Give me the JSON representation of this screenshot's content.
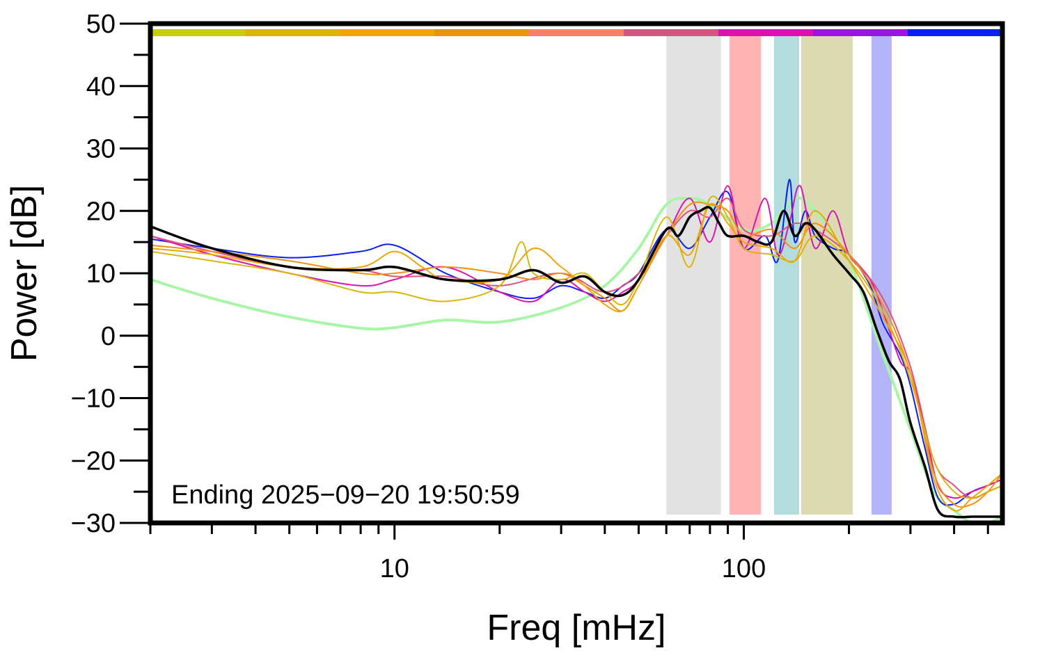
{
  "chart_data": {
    "type": "line",
    "xlabel": "Freq [mHz]",
    "ylabel": "Power [dB]",
    "xscale": "log",
    "xlim": [
      2,
      550
    ],
    "ylim": [
      -30,
      50
    ],
    "x_ticks": [
      10,
      100
    ],
    "y_ticks": [
      50,
      40,
      30,
      20,
      10,
      0,
      -10,
      -20,
      -30
    ],
    "y_tick_labels": [
      "50",
      "40",
      "30",
      "20",
      "10",
      "0",
      "−10",
      "−20",
      "−30"
    ],
    "x_tick_labels": [
      "10",
      "100"
    ],
    "annotation": "Ending 2025−09−20 19:50:59",
    "grid": false,
    "legend": "none",
    "color_bar": [
      "#c8cc10",
      "#d9b50a",
      "#eea50a",
      "#f39010",
      "#fb7f6a",
      "#de5080",
      "#dd10b0",
      "#a510e0",
      "#0a1ff0"
    ],
    "bands": [
      {
        "x0": 60,
        "x1": 86,
        "color": "#e2e2e2"
      },
      {
        "x0": 91,
        "x1": 112,
        "color": "#ffb3b3"
      },
      {
        "x0": 122,
        "x1": 144,
        "color": "#b3dcdd"
      },
      {
        "x0": 146,
        "x1": 205,
        "color": "#dbdab3"
      },
      {
        "x0": 232,
        "x1": 265,
        "color": "#b3b3f8"
      }
    ],
    "series": [
      {
        "color": "#a8f5a8",
        "width": 4,
        "x": [
          2,
          3,
          5,
          8,
          10,
          14,
          20,
          30,
          40,
          50,
          60,
          70,
          80,
          100,
          120,
          140,
          160,
          200,
          250,
          300,
          350,
          400,
          450,
          500,
          550
        ],
        "y": [
          9,
          6,
          3,
          1.2,
          1.3,
          2.5,
          2.2,
          4.5,
          8,
          14,
          21,
          22,
          21,
          17,
          18,
          22,
          20,
          12,
          -3,
          -15,
          -25,
          -28,
          -30,
          -30,
          -29
        ]
      },
      {
        "color": "#0a1ff0",
        "width": 2,
        "x": [
          2,
          3,
          5,
          8,
          10,
          14,
          20,
          25,
          30,
          35,
          40,
          45,
          50,
          60,
          70,
          80,
          90,
          100,
          115,
          125,
          135,
          140,
          150,
          160,
          180,
          200,
          230,
          250,
          280,
          300,
          330,
          360,
          400,
          450,
          500,
          550
        ],
        "y": [
          15.5,
          14,
          12.5,
          13.5,
          14.5,
          10,
          7,
          6,
          8,
          7,
          6,
          8,
          10,
          17,
          14,
          19,
          23,
          14,
          16,
          12,
          25,
          15,
          20,
          16,
          14,
          13,
          8,
          2,
          -3,
          -8,
          -18,
          -26,
          -27,
          -25,
          -24,
          -23
        ]
      },
      {
        "color": "#dd10b0",
        "width": 2,
        "x": [
          2,
          3,
          5,
          8,
          10,
          14,
          20,
          25,
          30,
          35,
          40,
          45,
          50,
          60,
          70,
          80,
          90,
          100,
          115,
          125,
          135,
          145,
          160,
          180,
          200,
          230,
          250,
          280,
          300,
          330,
          360,
          400,
          450,
          500,
          550
        ],
        "y": [
          16,
          13,
          10,
          8,
          9,
          11,
          7,
          5.5,
          9,
          7,
          5.5,
          7,
          9,
          16,
          22,
          15,
          24,
          14,
          22,
          13,
          18,
          24,
          14,
          20,
          13,
          9,
          4,
          -4,
          -6,
          -15,
          -24,
          -26,
          -25,
          -24,
          -23
        ]
      },
      {
        "color": "#de5080",
        "width": 2,
        "x": [
          2,
          3,
          5,
          8,
          10,
          14,
          20,
          30,
          40,
          50,
          60,
          70,
          80,
          90,
          100,
          120,
          140,
          160,
          200,
          250,
          300,
          350,
          400,
          450,
          500,
          550
        ],
        "y": [
          16,
          13.5,
          11,
          10.5,
          9.5,
          9.5,
          8,
          10,
          7,
          10,
          16,
          20,
          19,
          22,
          17,
          16,
          18,
          17,
          13,
          6,
          -5,
          -20,
          -24,
          -26,
          -25,
          -24
        ]
      },
      {
        "color": "#f39010",
        "width": 2,
        "x": [
          2,
          3,
          5,
          8,
          10,
          14,
          20,
          25,
          30,
          35,
          40,
          45,
          50,
          60,
          70,
          80,
          90,
          100,
          120,
          140,
          160,
          200,
          250,
          300,
          350,
          400,
          450,
          500,
          550
        ],
        "y": [
          14.5,
          13.5,
          12,
          10,
          10,
          11,
          10,
          9,
          10,
          8,
          6,
          4,
          8,
          16,
          21,
          21,
          20,
          16,
          17,
          14,
          18,
          13,
          5,
          -6,
          -22,
          -27,
          -27,
          -25,
          -22
        ]
      },
      {
        "color": "#d9b50a",
        "width": 2,
        "x": [
          2,
          3,
          5,
          8,
          10,
          14,
          20,
          23,
          25,
          30,
          35,
          40,
          45,
          50,
          60,
          70,
          80,
          90,
          100,
          120,
          140,
          160,
          200,
          250,
          300,
          350,
          400,
          450,
          500,
          550
        ],
        "y": [
          13.5,
          12,
          10,
          7,
          7,
          5.5,
          8,
          15,
          10,
          9,
          10,
          7,
          5,
          9,
          19,
          11,
          22,
          19,
          14,
          13,
          12,
          16,
          12,
          4,
          -7,
          -20,
          -25,
          -26,
          -25,
          -24
        ]
      },
      {
        "color": "#eea50a",
        "width": 2,
        "x": [
          2,
          3,
          5,
          8,
          10,
          12,
          14,
          20,
          25,
          30,
          35,
          40,
          45,
          50,
          60,
          70,
          80,
          90,
          100,
          120,
          140,
          160,
          200,
          250,
          300,
          350,
          400,
          450,
          500,
          550
        ],
        "y": [
          14,
          13,
          11,
          11,
          13.5,
          11,
          9,
          9,
          14,
          11,
          8,
          5,
          4,
          8,
          16,
          13,
          21,
          18,
          15,
          14,
          12,
          20,
          12,
          3,
          -6,
          -23,
          -28,
          -26,
          -24,
          -22
        ]
      },
      {
        "color": "#000000",
        "width": 3.5,
        "x": [
          2,
          3,
          5,
          8,
          10,
          14,
          20,
          25,
          30,
          35,
          40,
          45,
          50,
          60,
          65,
          70,
          75,
          80,
          85,
          90,
          100,
          110,
          120,
          130,
          140,
          150,
          160,
          180,
          200,
          220,
          240,
          260,
          280,
          300,
          330,
          360,
          400,
          450,
          500,
          550
        ],
        "y": [
          17.5,
          14,
          11,
          10.5,
          11,
          9,
          9,
          10.5,
          8.5,
          9.5,
          7,
          6.5,
          9,
          17,
          16,
          19,
          20,
          20.5,
          18,
          16,
          16,
          15,
          15,
          20,
          16,
          18,
          17,
          13,
          10,
          7,
          1,
          -4,
          -7,
          -14,
          -21,
          -28,
          -29,
          -29,
          -29,
          -29
        ]
      }
    ]
  }
}
